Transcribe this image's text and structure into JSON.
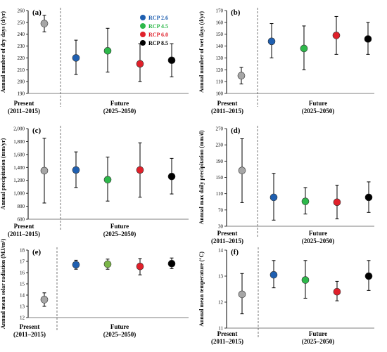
{
  "legend": {
    "items": [
      {
        "label": "RCP 2.6",
        "color": "#1f5fb0"
      },
      {
        "label": "RCP 4.5",
        "color": "#2db84a"
      },
      {
        "label": "RCP 6.0",
        "color": "#e0202a"
      },
      {
        "label": "RCP 8.5",
        "color": "#000000"
      }
    ]
  },
  "colors": {
    "present": "#a6a6a6",
    "rcp26": "#1f5fb0",
    "rcp45": "#2db84a",
    "rcp45_e": "#7ab648",
    "rcp60": "#e0202a",
    "rcp85": "#000000"
  },
  "x_categories": {
    "present": [
      "Present",
      "(2011–2015)"
    ],
    "future": [
      "Future",
      "(2025–2050)"
    ]
  },
  "chart_data": [
    {
      "panel": "(a)",
      "type": "scatter",
      "ylabel": "Annual number of  dry days (d/yr)",
      "ylim": [
        190,
        260
      ],
      "yticks": [
        190,
        200,
        210,
        220,
        230,
        240,
        250,
        260
      ],
      "tick_labels": [
        "190",
        "200",
        "210",
        "220",
        "230",
        "240",
        "250",
        "260"
      ],
      "series": [
        {
          "group": "present",
          "color": "#a6a6a6",
          "value": 249,
          "low": 242,
          "high": 256
        },
        {
          "name": "RCP 2.6",
          "color": "#1f5fb0",
          "value": 220,
          "low": 206,
          "high": 235
        },
        {
          "name": "RCP 4.5",
          "color": "#2db84a",
          "value": 226,
          "low": 208,
          "high": 245
        },
        {
          "name": "RCP 6.0",
          "color": "#e0202a",
          "value": 215,
          "low": 200,
          "high": 232
        },
        {
          "name": "RCP 8.5",
          "color": "#000000",
          "value": 218,
          "low": 204,
          "high": 232
        }
      ]
    },
    {
      "panel": "(b)",
      "type": "scatter",
      "ylabel": "Annual number of  wet days (d/yr)",
      "ylim": [
        100,
        170
      ],
      "yticks": [
        100,
        110,
        120,
        130,
        140,
        150,
        160,
        170
      ],
      "tick_labels": [
        "100",
        "110",
        "120",
        "130",
        "140",
        "150",
        "160",
        "170"
      ],
      "series": [
        {
          "group": "present",
          "color": "#a6a6a6",
          "value": 115,
          "low": 108,
          "high": 122
        },
        {
          "name": "RCP 2.6",
          "color": "#1f5fb0",
          "value": 144,
          "low": 130,
          "high": 159
        },
        {
          "name": "RCP 4.5",
          "color": "#2db84a",
          "value": 138,
          "low": 120,
          "high": 157
        },
        {
          "name": "RCP 6.0",
          "color": "#e0202a",
          "value": 149,
          "low": 133,
          "high": 165
        },
        {
          "name": "RCP 8.5",
          "color": "#000000",
          "value": 146,
          "low": 133,
          "high": 160
        }
      ]
    },
    {
      "panel": "(c)",
      "type": "scatter",
      "ylabel": "Annual precipitation  (mm/yr)",
      "ylim": [
        600,
        2000
      ],
      "yticks": [
        600,
        800,
        1000,
        1200,
        1400,
        1600,
        1800,
        2000
      ],
      "tick_labels": [
        "600",
        "800",
        "1,000",
        "1,200",
        "1,400",
        "1,600",
        "1,800",
        "2,000"
      ],
      "series": [
        {
          "group": "present",
          "color": "#a6a6a6",
          "value": 1350,
          "low": 850,
          "high": 1850
        },
        {
          "name": "RCP 2.6",
          "color": "#1f5fb0",
          "value": 1360,
          "low": 1090,
          "high": 1640
        },
        {
          "name": "RCP 4.5",
          "color": "#2db84a",
          "value": 1210,
          "low": 880,
          "high": 1560
        },
        {
          "name": "RCP 6.0",
          "color": "#e0202a",
          "value": 1360,
          "low": 940,
          "high": 1780
        },
        {
          "name": "RCP 8.5",
          "color": "#000000",
          "value": 1260,
          "low": 990,
          "high": 1540
        }
      ]
    },
    {
      "panel": "(d)",
      "type": "scatter",
      "ylabel": "Annual max daily precipitation (mm/d)",
      "ylim": [
        30,
        270
      ],
      "yticks": [
        30,
        70,
        110,
        150,
        190,
        230,
        270
      ],
      "tick_labels": [
        "30",
        "70",
        "110",
        "150",
        "190",
        "230",
        "270"
      ],
      "series": [
        {
          "group": "present",
          "color": "#a6a6a6",
          "value": 167,
          "low": 88,
          "high": 245
        },
        {
          "name": "RCP 2.6",
          "color": "#1f5fb0",
          "value": 101,
          "low": 45,
          "high": 160
        },
        {
          "name": "RCP 4.5",
          "color": "#2db84a",
          "value": 91,
          "low": 60,
          "high": 125
        },
        {
          "name": "RCP 6.0",
          "color": "#e0202a",
          "value": 89,
          "low": 48,
          "high": 131
        },
        {
          "name": "RCP 8.5",
          "color": "#000000",
          "value": 101,
          "low": 64,
          "high": 139
        }
      ]
    },
    {
      "panel": "(e)",
      "type": "scatter",
      "ylabel": "Annual mean solar radiation (MJ/m²)",
      "ylim": [
        12,
        18
      ],
      "yticks": [
        12,
        13,
        14,
        15,
        16,
        17,
        18
      ],
      "tick_labels": [
        "12",
        "13",
        "14",
        "15",
        "16",
        "17",
        "18"
      ],
      "series": [
        {
          "group": "present",
          "color": "#a6a6a6",
          "value": 13.6,
          "low": 13.0,
          "high": 14.2
        },
        {
          "name": "RCP 2.6",
          "color": "#1f5fb0",
          "value": 16.7,
          "low": 16.3,
          "high": 17.1
        },
        {
          "name": "RCP 4.5",
          "color": "#7ab648",
          "value": 16.75,
          "low": 16.3,
          "high": 17.2
        },
        {
          "name": "RCP 6.0",
          "color": "#e0202a",
          "value": 16.55,
          "low": 15.8,
          "high": 17.25
        },
        {
          "name": "RCP 8.5",
          "color": "#000000",
          "value": 16.8,
          "low": 16.35,
          "high": 17.3
        }
      ]
    },
    {
      "panel": "(f)",
      "type": "scatter",
      "ylabel": "Annual mean temperature  (°C)",
      "ylim": [
        11,
        14
      ],
      "yticks": [
        11,
        12,
        13,
        14
      ],
      "tick_labels": [
        "11",
        "12",
        "13",
        "14"
      ],
      "series": [
        {
          "group": "present",
          "color": "#a6a6a6",
          "value": 12.3,
          "low": 11.55,
          "high": 13.1
        },
        {
          "name": "RCP 2.6",
          "color": "#1f5fb0",
          "value": 13.05,
          "low": 12.55,
          "high": 13.6
        },
        {
          "name": "RCP 4.5",
          "color": "#2db84a",
          "value": 12.85,
          "low": 12.15,
          "high": 13.6
        },
        {
          "name": "RCP 6.0",
          "color": "#e0202a",
          "value": 12.4,
          "low": 12.05,
          "high": 12.8
        },
        {
          "name": "RCP 8.5",
          "color": "#000000",
          "value": 13.0,
          "low": 12.45,
          "high": 13.6
        }
      ]
    }
  ]
}
